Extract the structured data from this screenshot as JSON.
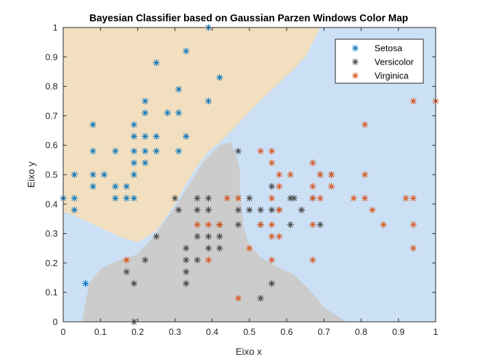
{
  "chart_data": {
    "type": "scatter",
    "title": "Bayesian Classifier based on Gaussian Parzen Windows Color Map",
    "xlabel": "Eixo x",
    "ylabel": "Eixo y",
    "xlim": [
      0,
      1
    ],
    "ylim": [
      0,
      1
    ],
    "xticks": [
      "0",
      "0.1",
      "0.2",
      "0.3",
      "0.4",
      "0.5",
      "0.6",
      "0.7",
      "0.8",
      "0.9",
      "1"
    ],
    "yticks": [
      "0",
      "0.1",
      "0.2",
      "0.3",
      "0.4",
      "0.5",
      "0.6",
      "0.7",
      "0.8",
      "0.9",
      "1"
    ],
    "grid": false,
    "legend_position": "top-right",
    "regions": {
      "setosa_color": "#f2dfbf",
      "versicolor_color": "#cccccc",
      "virginica_color": "#cce0f5",
      "setosa_boundary": [
        [
          0,
          0.375
        ],
        [
          0.05,
          0.35
        ],
        [
          0.1,
          0.32
        ],
        [
          0.15,
          0.29
        ],
        [
          0.2,
          0.27
        ],
        [
          0.25,
          0.31
        ],
        [
          0.3,
          0.4
        ],
        [
          0.33,
          0.47
        ],
        [
          0.36,
          0.53
        ],
        [
          0.39,
          0.58
        ],
        [
          0.42,
          0.61
        ],
        [
          0.46,
          0.66
        ],
        [
          0.52,
          0.74
        ],
        [
          0.57,
          0.8
        ],
        [
          0.62,
          0.86
        ],
        [
          0.65,
          0.9
        ],
        [
          0.67,
          0.95
        ],
        [
          0.69,
          1.0
        ]
      ],
      "versicolor_boundary": [
        [
          0.05,
          0
        ],
        [
          0.07,
          0.13
        ],
        [
          0.1,
          0.18
        ],
        [
          0.15,
          0.21
        ],
        [
          0.2,
          0.23
        ],
        [
          0.25,
          0.3
        ],
        [
          0.3,
          0.39
        ],
        [
          0.34,
          0.47
        ],
        [
          0.38,
          0.55
        ],
        [
          0.42,
          0.6
        ],
        [
          0.45,
          0.61
        ],
        [
          0.46,
          0.58
        ],
        [
          0.475,
          0.52
        ],
        [
          0.475,
          0.45
        ],
        [
          0.48,
          0.38
        ],
        [
          0.485,
          0.32
        ],
        [
          0.5,
          0.26
        ],
        [
          0.53,
          0.22
        ],
        [
          0.57,
          0.19
        ],
        [
          0.62,
          0.16
        ],
        [
          0.66,
          0.11
        ],
        [
          0.7,
          0.05
        ],
        [
          0.76,
          0
        ]
      ]
    },
    "series": [
      {
        "name": "Setosa",
        "color": "#0072bd",
        "points": [
          [
            0.39,
            1.0
          ],
          [
            0.33,
            0.92
          ],
          [
            0.25,
            0.88
          ],
          [
            0.42,
            0.83
          ],
          [
            0.31,
            0.79
          ],
          [
            0.22,
            0.75
          ],
          [
            0.39,
            0.75
          ],
          [
            0.22,
            0.71
          ],
          [
            0.28,
            0.71
          ],
          [
            0.31,
            0.71
          ],
          [
            0.08,
            0.67
          ],
          [
            0.19,
            0.67
          ],
          [
            0.19,
            0.63
          ],
          [
            0.22,
            0.63
          ],
          [
            0.25,
            0.63
          ],
          [
            0.33,
            0.63
          ],
          [
            0.08,
            0.58
          ],
          [
            0.14,
            0.58
          ],
          [
            0.19,
            0.58
          ],
          [
            0.22,
            0.58
          ],
          [
            0.25,
            0.58
          ],
          [
            0.31,
            0.58
          ],
          [
            0.19,
            0.54
          ],
          [
            0.22,
            0.54
          ],
          [
            0.03,
            0.5
          ],
          [
            0.08,
            0.5
          ],
          [
            0.11,
            0.5
          ],
          [
            0.19,
            0.5
          ],
          [
            0.08,
            0.46
          ],
          [
            0.14,
            0.46
          ],
          [
            0.17,
            0.46
          ],
          [
            0.0,
            0.42
          ],
          [
            0.03,
            0.42
          ],
          [
            0.14,
            0.42
          ],
          [
            0.17,
            0.42
          ],
          [
            0.19,
            0.42
          ],
          [
            0.03,
            0.38
          ],
          [
            0.06,
            0.13
          ]
        ]
      },
      {
        "name": "Versicolor",
        "color": "#404040",
        "points": [
          [
            0.47,
            0.58
          ],
          [
            0.69,
            0.5
          ],
          [
            0.3,
            0.42
          ],
          [
            0.61,
            0.42
          ],
          [
            0.36,
            0.42
          ],
          [
            0.39,
            0.42
          ],
          [
            0.5,
            0.38
          ],
          [
            0.53,
            0.38
          ],
          [
            0.56,
            0.38
          ],
          [
            0.64,
            0.38
          ],
          [
            0.36,
            0.38
          ],
          [
            0.39,
            0.38
          ],
          [
            0.47,
            0.38
          ],
          [
            0.58,
            0.38
          ],
          [
            0.42,
            0.33
          ],
          [
            0.53,
            0.33
          ],
          [
            0.47,
            0.33
          ],
          [
            0.61,
            0.33
          ],
          [
            0.69,
            0.33
          ],
          [
            0.25,
            0.29
          ],
          [
            0.36,
            0.29
          ],
          [
            0.42,
            0.29
          ],
          [
            0.39,
            0.29
          ],
          [
            0.33,
            0.25
          ],
          [
            0.39,
            0.25
          ],
          [
            0.42,
            0.25
          ],
          [
            0.22,
            0.21
          ],
          [
            0.33,
            0.21
          ],
          [
            0.36,
            0.21
          ],
          [
            0.17,
            0.17
          ],
          [
            0.33,
            0.17
          ],
          [
            0.19,
            0.13
          ],
          [
            0.33,
            0.13
          ],
          [
            0.56,
            0.13
          ],
          [
            0.53,
            0.08
          ],
          [
            0.19,
            0.0
          ],
          [
            0.31,
            0.38
          ],
          [
            0.62,
            0.42
          ],
          [
            0.67,
            0.42
          ],
          [
            0.72,
            0.5
          ],
          [
            0.56,
            0.46
          ],
          [
            0.5,
            0.42
          ]
        ]
      },
      {
        "name": "Virginica",
        "color": "#d95319",
        "points": [
          [
            0.94,
            0.75
          ],
          [
            1.0,
            0.75
          ],
          [
            0.81,
            0.67
          ],
          [
            0.53,
            0.58
          ],
          [
            0.56,
            0.58
          ],
          [
            0.56,
            0.54
          ],
          [
            0.67,
            0.54
          ],
          [
            0.58,
            0.5
          ],
          [
            0.61,
            0.5
          ],
          [
            0.69,
            0.5
          ],
          [
            0.72,
            0.5
          ],
          [
            0.81,
            0.5
          ],
          [
            0.58,
            0.46
          ],
          [
            0.67,
            0.46
          ],
          [
            0.72,
            0.46
          ],
          [
            0.44,
            0.42
          ],
          [
            0.47,
            0.42
          ],
          [
            0.56,
            0.42
          ],
          [
            0.67,
            0.42
          ],
          [
            0.69,
            0.42
          ],
          [
            0.78,
            0.42
          ],
          [
            0.81,
            0.42
          ],
          [
            0.92,
            0.42
          ],
          [
            0.94,
            0.42
          ],
          [
            0.58,
            0.38
          ],
          [
            0.83,
            0.38
          ],
          [
            0.36,
            0.33
          ],
          [
            0.39,
            0.33
          ],
          [
            0.42,
            0.33
          ],
          [
            0.53,
            0.33
          ],
          [
            0.56,
            0.33
          ],
          [
            0.67,
            0.33
          ],
          [
            0.86,
            0.33
          ],
          [
            0.94,
            0.33
          ],
          [
            0.56,
            0.29
          ],
          [
            0.58,
            0.29
          ],
          [
            0.5,
            0.25
          ],
          [
            0.94,
            0.25
          ],
          [
            0.17,
            0.21
          ],
          [
            0.39,
            0.21
          ],
          [
            0.56,
            0.21
          ],
          [
            0.67,
            0.21
          ],
          [
            0.47,
            0.08
          ]
        ]
      }
    ]
  }
}
